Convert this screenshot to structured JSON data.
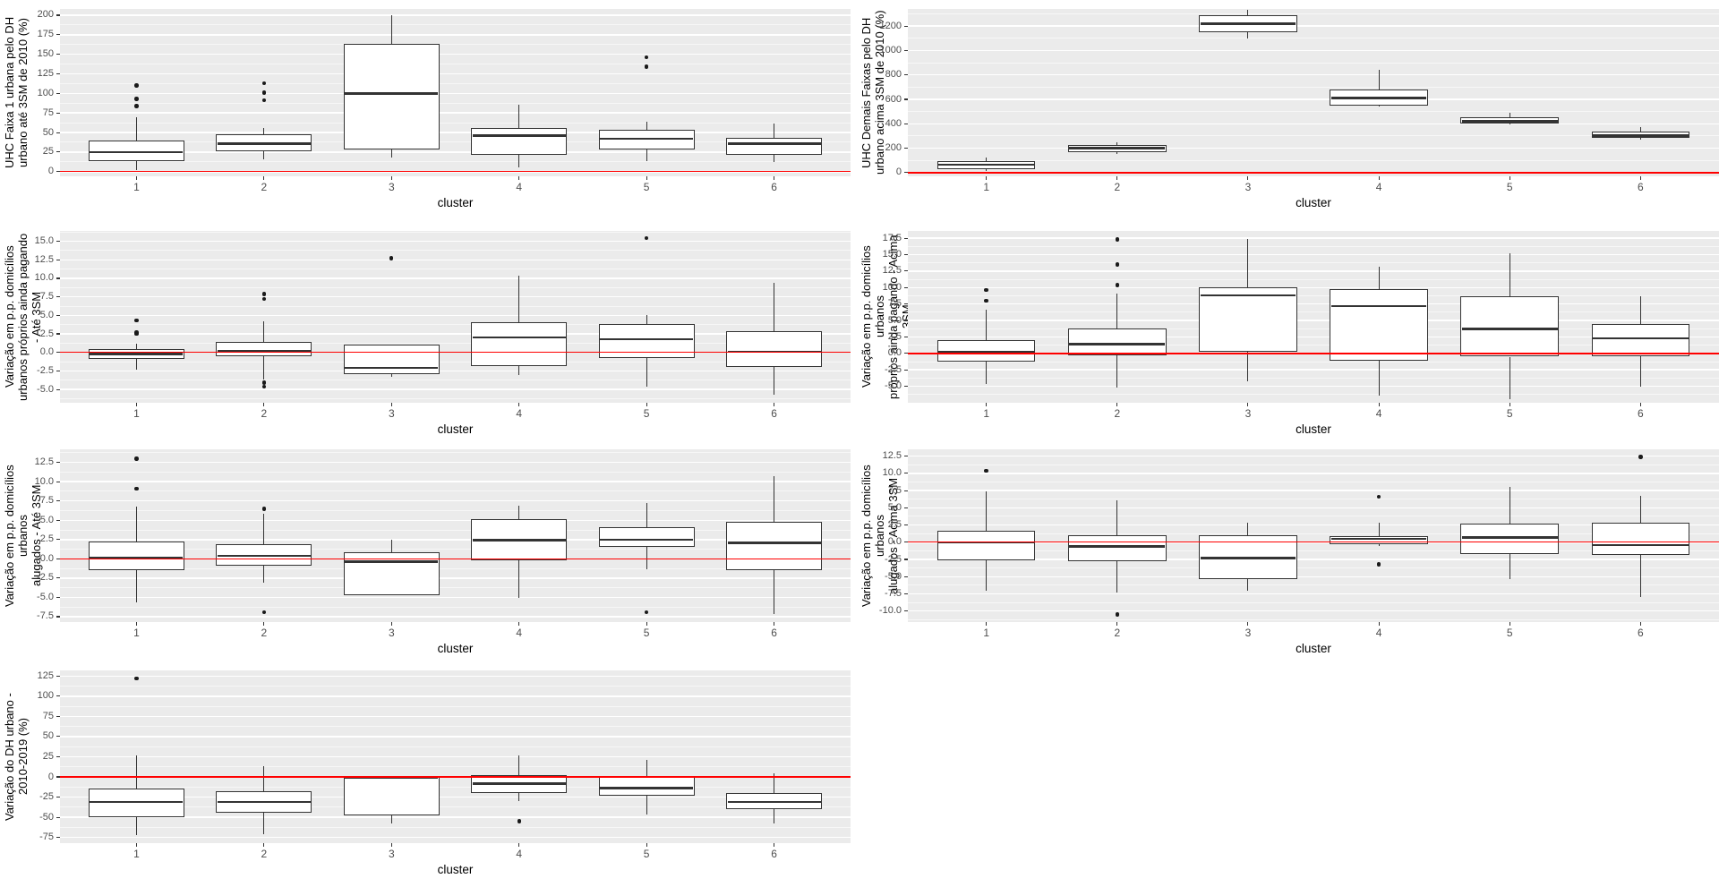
{
  "colors": {
    "panel_bg": "#EBEBEB",
    "grid_major": "#FFFFFF",
    "box_border": "#333333",
    "median": "#333333",
    "outlier": "#1A1A1A",
    "refline": "#FF0000",
    "tick_label": "#4D4D4D",
    "axis_title": "#000000"
  },
  "chart_data": [
    {
      "id": "uhc-faixa1-ate-3sm",
      "type": "boxplot",
      "row": 1,
      "column": "left",
      "title": "UHC Faixa 1 urbana pelo DH\nurbano até 3SM de 2010 (%)",
      "xlabel": "cluster",
      "categories": [
        "1",
        "2",
        "3",
        "4",
        "5",
        "6"
      ],
      "yticks": [
        0,
        25,
        50,
        75,
        100,
        125,
        150,
        175,
        200
      ],
      "ytick_labels": [
        "0",
        "25",
        "50",
        "75",
        "100",
        "125",
        "150",
        "175",
        "200"
      ],
      "ylim": [
        -6,
        208
      ],
      "refline": 0,
      "grid": true,
      "legend": "none",
      "boxes": [
        {
          "lo": 2,
          "q1": 13,
          "med": 25,
          "q3": 40,
          "hi": 70,
          "outliers": [
            84,
            93,
            110
          ]
        },
        {
          "lo": 16,
          "q1": 26,
          "med": 36,
          "q3": 48,
          "hi": 56,
          "outliers": [
            91,
            101,
            113
          ]
        },
        {
          "lo": 18,
          "q1": 28,
          "med": 100,
          "q3": 163,
          "hi": 200,
          "outliers": []
        },
        {
          "lo": 6,
          "q1": 21,
          "med": 46,
          "q3": 56,
          "hi": 85,
          "outliers": []
        },
        {
          "lo": 14,
          "q1": 28,
          "med": 42,
          "q3": 53,
          "hi": 64,
          "outliers": [
            134,
            146
          ]
        },
        {
          "lo": 12,
          "q1": 22,
          "med": 36,
          "q3": 43,
          "hi": 62,
          "outliers": []
        }
      ]
    },
    {
      "id": "uhc-demais-faixas-acima-3sm",
      "type": "boxplot",
      "row": 1,
      "column": "right",
      "title": "UHC Demais Faixas pelo DH\nurbano acima 3SM de 2010 (%)",
      "xlabel": "cluster",
      "categories": [
        "1",
        "2",
        "3",
        "4",
        "5",
        "6"
      ],
      "yticks": [
        0,
        200,
        400,
        600,
        800,
        1000,
        1200
      ],
      "ytick_labels": [
        "0",
        "200",
        "400",
        "600",
        "800",
        "1000",
        "1200"
      ],
      "ylim": [
        -30,
        1340
      ],
      "refline": 0,
      "grid": true,
      "legend": "none",
      "boxes": [
        {
          "lo": 15,
          "q1": 30,
          "med": 65,
          "q3": 95,
          "hi": 125,
          "outliers": []
        },
        {
          "lo": 155,
          "q1": 170,
          "med": 200,
          "q3": 225,
          "hi": 245,
          "outliers": []
        },
        {
          "lo": 1100,
          "q1": 1150,
          "med": 1220,
          "q3": 1290,
          "hi": 1330,
          "outliers": []
        },
        {
          "lo": 540,
          "q1": 550,
          "med": 610,
          "q3": 680,
          "hi": 845,
          "outliers": []
        },
        {
          "lo": 395,
          "q1": 405,
          "med": 420,
          "q3": 450,
          "hi": 490,
          "outliers": []
        },
        {
          "lo": 270,
          "q1": 285,
          "med": 305,
          "q3": 335,
          "hi": 375,
          "outliers": []
        }
      ]
    },
    {
      "id": "variacao-proprios-pagando-ate-3sm",
      "type": "boxplot",
      "row": 2,
      "column": "left",
      "title": "Variação em p.p. domicílios\nurbanos próprios ainda pagando - Até 3SM",
      "xlabel": "cluster",
      "categories": [
        "1",
        "2",
        "3",
        "4",
        "5",
        "6"
      ],
      "yticks": [
        -5,
        -2.5,
        0,
        2.5,
        5,
        7.5,
        10,
        12.5,
        15
      ],
      "ytick_labels": [
        "-5.0",
        "-2.5",
        "0.0",
        "2.5",
        "5.0",
        "7.5",
        "10.0",
        "12.5",
        "15.0"
      ],
      "ylim": [
        -6.8,
        16.4
      ],
      "refline": 0,
      "grid": true,
      "legend": "none",
      "boxes": [
        {
          "lo": -2.3,
          "q1": -0.9,
          "med": -0.2,
          "q3": 0.4,
          "hi": 1.2,
          "outliers": [
            2.5,
            2.7,
            4.3
          ]
        },
        {
          "lo": -3.7,
          "q1": -0.5,
          "med": 0.2,
          "q3": 1.4,
          "hi": 4.2,
          "outliers": [
            -4.1,
            -4.6,
            7.2,
            7.9
          ]
        },
        {
          "lo": -3.3,
          "q1": -2.9,
          "med": -2.1,
          "q3": 1.0,
          "hi": 1.0,
          "outliers": [
            12.7
          ]
        },
        {
          "lo": -3.0,
          "q1": -1.8,
          "med": 2.0,
          "q3": 4.1,
          "hi": 10.3,
          "outliers": []
        },
        {
          "lo": -4.6,
          "q1": -0.8,
          "med": 1.8,
          "q3": 3.8,
          "hi": 5.0,
          "outliers": [
            15.4
          ]
        },
        {
          "lo": -5.7,
          "q1": -2.0,
          "med": 0.1,
          "q3": 2.9,
          "hi": 9.4,
          "outliers": []
        }
      ]
    },
    {
      "id": "variacao-proprios-pagando-acima-3sm",
      "type": "boxplot",
      "row": 2,
      "column": "right",
      "title": "Variação em p.p. domicílios urbanos\npróprios ainda pagando - Acima 3SM",
      "xlabel": "cluster",
      "categories": [
        "1",
        "2",
        "3",
        "4",
        "5",
        "6"
      ],
      "yticks": [
        -5,
        -2.5,
        0,
        2.5,
        5,
        7.5,
        10,
        12.5,
        15,
        17.5
      ],
      "ytick_labels": [
        "-5.0",
        "-2.5",
        "0.0",
        "2.5",
        "5.0",
        "7.5",
        "10.0",
        "12.5",
        "15.0",
        "17.5"
      ],
      "ylim": [
        -7.5,
        18.6
      ],
      "refline": 0,
      "grid": true,
      "legend": "none",
      "boxes": [
        {
          "lo": -4.6,
          "q1": -1.2,
          "med": 0.2,
          "q3": 2.0,
          "hi": 6.7,
          "outliers": [
            8.0,
            9.6
          ]
        },
        {
          "lo": -5.2,
          "q1": -0.3,
          "med": 1.4,
          "q3": 3.8,
          "hi": 9.1,
          "outliers": [
            10.4,
            13.5,
            17.3
          ]
        },
        {
          "lo": -4.2,
          "q1": 0.2,
          "med": 8.8,
          "q3": 10.0,
          "hi": 17.4,
          "outliers": []
        },
        {
          "lo": -6.4,
          "q1": -1.1,
          "med": 7.2,
          "q3": 9.8,
          "hi": 13.2,
          "outliers": []
        },
        {
          "lo": -7.0,
          "q1": -0.5,
          "med": 3.7,
          "q3": 8.7,
          "hi": 15.2,
          "outliers": []
        },
        {
          "lo": -5.1,
          "q1": -0.4,
          "med": 2.3,
          "q3": 4.5,
          "hi": 8.7,
          "outliers": []
        }
      ]
    },
    {
      "id": "variacao-alugados-ate-3sm",
      "type": "boxplot",
      "row": 3,
      "column": "left",
      "title": "Variação em p.p. domicílios urbanos\nalugados - Até 3SM",
      "xlabel": "cluster",
      "categories": [
        "1",
        "2",
        "3",
        "4",
        "5",
        "6"
      ],
      "yticks": [
        -7.5,
        -5,
        -2.5,
        0,
        2.5,
        5,
        7.5,
        10,
        12.5
      ],
      "ytick_labels": [
        "-7.5",
        "-5.0",
        "-2.5",
        "0.0",
        "2.5",
        "5.0",
        "7.5",
        "10.0",
        "12.5"
      ],
      "ylim": [
        -8.2,
        14.2
      ],
      "refline": 0,
      "grid": true,
      "legend": "none",
      "boxes": [
        {
          "lo": -5.7,
          "q1": -1.5,
          "med": 0.1,
          "q3": 2.3,
          "hi": 6.8,
          "outliers": [
            9.1,
            13.0
          ]
        },
        {
          "lo": -3.1,
          "q1": -0.9,
          "med": 0.4,
          "q3": 1.9,
          "hi": 5.9,
          "outliers": [
            6.5,
            -6.9
          ]
        },
        {
          "lo": -4.7,
          "q1": -4.7,
          "med": -0.4,
          "q3": 0.9,
          "hi": 2.5,
          "outliers": []
        },
        {
          "lo": -5.1,
          "q1": -0.2,
          "med": 2.4,
          "q3": 5.1,
          "hi": 6.9,
          "outliers": []
        },
        {
          "lo": -1.3,
          "q1": 1.6,
          "med": 2.5,
          "q3": 4.1,
          "hi": 7.2,
          "outliers": [
            -6.9
          ]
        },
        {
          "lo": -7.2,
          "q1": -1.5,
          "med": 2.1,
          "q3": 4.8,
          "hi": 10.7,
          "outliers": []
        }
      ]
    },
    {
      "id": "variacao-alugados-acima-3sm",
      "type": "boxplot",
      "row": 3,
      "column": "right",
      "title": "Variação em p.p. domicílios urbanos\nalugados - Acima 3SM",
      "xlabel": "cluster",
      "categories": [
        "1",
        "2",
        "3",
        "4",
        "5",
        "6"
      ],
      "yticks": [
        -10,
        -7.5,
        -5,
        -2.5,
        0,
        2.5,
        5,
        7.5,
        10,
        12.5
      ],
      "ytick_labels": [
        "-10.0",
        "-7.5",
        "-5.0",
        "-2.5",
        "0.0",
        "2.5",
        "5.0",
        "7.5",
        "10.0",
        "12.5"
      ],
      "ylim": [
        -11.6,
        13.5
      ],
      "refline": 0,
      "grid": true,
      "legend": "none",
      "boxes": [
        {
          "lo": -7.1,
          "q1": -2.6,
          "med": 0.0,
          "q3": 1.7,
          "hi": 7.4,
          "outliers": [
            10.4
          ]
        },
        {
          "lo": -7.3,
          "q1": -2.8,
          "med": -0.6,
          "q3": 1.0,
          "hi": 6.1,
          "outliers": [
            -10.5
          ]
        },
        {
          "lo": -7.0,
          "q1": -5.3,
          "med": -2.3,
          "q3": 1.0,
          "hi": 2.8,
          "outliers": []
        },
        {
          "lo": -0.5,
          "q1": -0.3,
          "med": 0.5,
          "q3": 0.9,
          "hi": 2.9,
          "outliers": [
            6.6,
            -3.2
          ]
        },
        {
          "lo": -5.3,
          "q1": -1.7,
          "med": 0.7,
          "q3": 2.7,
          "hi": 8.1,
          "outliers": []
        },
        {
          "lo": -8.0,
          "q1": -1.9,
          "med": -0.4,
          "q3": 2.9,
          "hi": 6.8,
          "outliers": [
            12.4
          ]
        }
      ]
    },
    {
      "id": "variacao-dh-urbano-2010-2019",
      "type": "boxplot",
      "row": 4,
      "column": "left",
      "title": "Variação do DH urbano -\n2010-2019 (%)",
      "xlabel": "cluster",
      "categories": [
        "1",
        "2",
        "3",
        "4",
        "5",
        "6"
      ],
      "yticks": [
        -75,
        -50,
        -25,
        0,
        25,
        50,
        75,
        100,
        125
      ],
      "ytick_labels": [
        "-75",
        "-50",
        "-25",
        "0",
        "25",
        "50",
        "75",
        "100",
        "125"
      ],
      "ylim": [
        -82,
        132
      ],
      "refline": 0,
      "grid": true,
      "legend": "none",
      "boxes": [
        {
          "lo": -72,
          "q1": -50,
          "med": -31,
          "q3": -14,
          "hi": 27,
          "outliers": [
            122
          ]
        },
        {
          "lo": -71,
          "q1": -44,
          "med": -31,
          "q3": -18,
          "hi": 13,
          "outliers": []
        },
        {
          "lo": -58,
          "q1": -48,
          "med": -1,
          "q3": 0,
          "hi": 0,
          "outliers": []
        },
        {
          "lo": -30,
          "q1": -20,
          "med": -8,
          "q3": 2,
          "hi": 27,
          "outliers": [
            -55
          ]
        },
        {
          "lo": -47,
          "q1": -23,
          "med": -14,
          "q3": 1,
          "hi": 21,
          "outliers": []
        },
        {
          "lo": -58,
          "q1": -40,
          "med": -31,
          "q3": -20,
          "hi": 4,
          "outliers": []
        }
      ]
    }
  ]
}
